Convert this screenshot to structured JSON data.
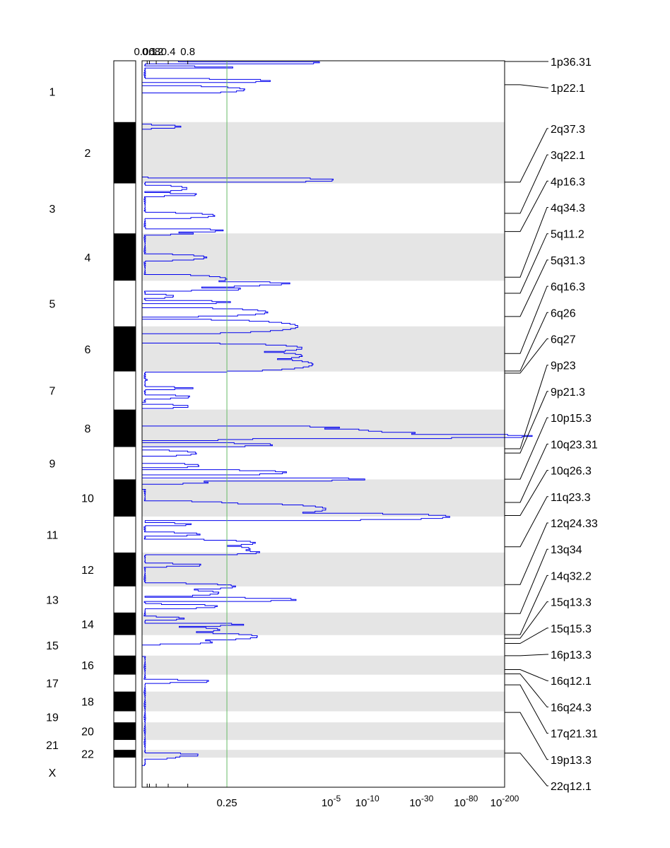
{
  "chart_data": {
    "type": "line",
    "title": "",
    "top_axis": {
      "ticks": [
        "0.068",
        "0.1",
        "0.2",
        "0.4",
        "0.8"
      ],
      "tick_values": [
        0.068,
        0.1,
        0.2,
        0.4,
        0.8
      ]
    },
    "bottom_axis": {
      "ticks": [
        {
          "base": "0.25",
          "exp": "",
          "value": 0.25
        },
        {
          "base": "10",
          "exp": "-5",
          "value": 1e-05
        },
        {
          "base": "10",
          "exp": "-10",
          "value": 1e-10
        },
        {
          "base": "10",
          "exp": "-30",
          "value": 1e-30
        },
        {
          "base": "10",
          "exp": "-80",
          "value": 1e-80
        },
        {
          "base": "10",
          "exp": "-200",
          "value": 1e-200
        }
      ]
    },
    "threshold_qvalue": 0.25,
    "threshold_color": "#66bb66",
    "series_color": "#0000ee",
    "chromosomes": [
      {
        "label": "1",
        "fraction": 0.0845
      },
      {
        "label": "2",
        "fraction": 0.0845
      },
      {
        "label": "3",
        "fraction": 0.0689
      },
      {
        "label": "4",
        "fraction": 0.0652
      },
      {
        "label": "5",
        "fraction": 0.0629
      },
      {
        "label": "6",
        "fraction": 0.0622
      },
      {
        "label": "7",
        "fraction": 0.0525
      },
      {
        "label": "8",
        "fraction": 0.0515
      },
      {
        "label": "9",
        "fraction": 0.0447
      },
      {
        "label": "10",
        "fraction": 0.0512
      },
      {
        "label": "11",
        "fraction": 0.0496
      },
      {
        "label": "12",
        "fraction": 0.0467
      },
      {
        "label": "13",
        "fraction": 0.036
      },
      {
        "label": "14",
        "fraction": 0.0311
      },
      {
        "label": "15",
        "fraction": 0.0282
      },
      {
        "label": "16",
        "fraction": 0.0263
      },
      {
        "label": "17",
        "fraction": 0.0233
      },
      {
        "label": "18",
        "fraction": 0.0272
      },
      {
        "label": "19",
        "fraction": 0.0152
      },
      {
        "label": "20",
        "fraction": 0.0243
      },
      {
        "label": "21",
        "fraction": 0.0136
      },
      {
        "label": "22",
        "fraction": 0.0107
      },
      {
        "label": "X",
        "fraction": 0.0408
      }
    ],
    "peaks": [
      [
        0.0,
        0.7,
        0.004,
        11
      ],
      [
        0.007,
        0.6,
        0.01,
        2.5
      ],
      [
        0.024,
        0.4,
        0.03,
        4.4
      ],
      [
        0.034,
        0.8,
        0.044,
        2.8
      ],
      [
        0.087,
        0.03,
        0.093,
        0.7
      ],
      [
        0.16,
        0.08,
        0.167,
        11
      ],
      [
        0.17,
        0.02,
        0.18,
        0.8
      ],
      [
        0.181,
        0.02,
        0.186,
        1.1
      ],
      [
        0.208,
        0.05,
        0.217,
        1.8
      ],
      [
        0.23,
        0.05,
        0.236,
        2.0
      ],
      [
        0.235,
        0.02,
        0.239,
        1.0
      ],
      [
        0.265,
        0.04,
        0.275,
        1.3
      ],
      [
        0.293,
        0.05,
        0.307,
        2.1
      ],
      [
        0.303,
        0.15,
        0.309,
        6.2
      ],
      [
        0.305,
        0.1,
        0.311,
        4.0
      ],
      [
        0.311,
        0.15,
        0.316,
        3.0
      ],
      [
        0.32,
        0.01,
        0.327,
        0.6
      ],
      [
        0.329,
        0.02,
        0.334,
        2.4
      ],
      [
        0.339,
        0.05,
        0.352,
        4.3
      ],
      [
        0.355,
        0.1,
        0.375,
        6.5
      ],
      [
        0.37,
        0.15,
        0.375,
        3.0
      ],
      [
        0.388,
        0.1,
        0.402,
        7.0
      ],
      [
        0.398,
        0.15,
        0.413,
        7.2
      ],
      [
        0.407,
        0.25,
        0.428,
        8.8
      ],
      [
        0.437,
        0.02,
        0.439,
        0.1
      ],
      [
        0.448,
        0.01,
        0.452,
        1.0
      ],
      [
        0.459,
        0.02,
        0.465,
        0.9
      ],
      [
        0.472,
        0.05,
        0.478,
        0.85
      ],
      [
        0.502,
        0.8,
        0.507,
        12
      ],
      [
        0.505,
        0.4,
        0.512,
        18
      ],
      [
        0.509,
        0.2,
        0.515,
        35
      ],
      [
        0.513,
        0.4,
        0.519,
        160
      ],
      [
        0.517,
        0.2,
        0.522,
        3.5
      ],
      [
        0.525,
        0.05,
        0.531,
        5.0
      ],
      [
        0.535,
        0.05,
        0.544,
        1.2
      ],
      [
        0.553,
        0.05,
        0.56,
        1.2
      ],
      [
        0.562,
        0.05,
        0.57,
        5.7
      ],
      [
        0.573,
        0.1,
        0.578,
        17
      ],
      [
        0.577,
        0.05,
        0.582,
        1.4
      ],
      [
        0.59,
        0.01,
        0.597,
        0.02
      ],
      [
        0.605,
        0.05,
        0.615,
        2.5
      ],
      [
        0.608,
        0.5,
        0.625,
        10
      ],
      [
        0.622,
        0.8,
        0.632,
        55
      ],
      [
        0.635,
        0.05,
        0.64,
        1.0
      ],
      [
        0.648,
        0.08,
        0.654,
        1.3
      ],
      [
        0.658,
        0.4,
        0.668,
        3.6
      ],
      [
        0.665,
        0.2,
        0.677,
        3.2
      ],
      [
        0.672,
        0.3,
        0.68,
        3.7
      ],
      [
        0.691,
        0.02,
        0.696,
        1.2
      ],
      [
        0.718,
        0.08,
        0.728,
        2.4
      ],
      [
        0.727,
        0.1,
        0.737,
        1.8
      ],
      [
        0.738,
        0.05,
        0.744,
        7.0
      ],
      [
        0.747,
        0.05,
        0.754,
        1.9
      ],
      [
        0.764,
        0.02,
        0.77,
        0.8
      ],
      [
        0.773,
        0.1,
        0.778,
        2.9
      ],
      [
        0.778,
        0.1,
        0.787,
        1.8
      ],
      [
        0.786,
        0.08,
        0.798,
        3.5
      ],
      [
        0.796,
        0.05,
        0.803,
        1.5
      ],
      [
        0.851,
        0.02,
        0.856,
        1.6
      ],
      [
        0.903,
        0.01,
        0.905,
        0.05
      ],
      [
        0.952,
        0.05,
        0.958,
        1.2
      ],
      [
        0.956,
        0.02,
        0.961,
        0.6
      ]
    ],
    "cytobands": [
      {
        "label": "1p36.31",
        "pos": 0.001
      },
      {
        "label": "1p22.1",
        "pos": 0.033
      },
      {
        "label": "2q37.3",
        "pos": 0.167
      },
      {
        "label": "3q22.1",
        "pos": 0.21
      },
      {
        "label": "4p16.3",
        "pos": 0.235
      },
      {
        "label": "4q34.3",
        "pos": 0.298
      },
      {
        "label": "5q11.2",
        "pos": 0.32
      },
      {
        "label": "5q31.3",
        "pos": 0.352
      },
      {
        "label": "6q16.3",
        "pos": 0.403
      },
      {
        "label": "6q26",
        "pos": 0.427
      },
      {
        "label": "6q27",
        "pos": 0.43
      },
      {
        "label": "9p23",
        "pos": 0.534
      },
      {
        "label": "9p21.3",
        "pos": 0.54
      },
      {
        "label": "10p15.3",
        "pos": 0.576
      },
      {
        "label": "10q23.31",
        "pos": 0.608
      },
      {
        "label": "10q26.3",
        "pos": 0.626
      },
      {
        "label": "11q23.3",
        "pos": 0.669
      },
      {
        "label": "12q24.33",
        "pos": 0.721
      },
      {
        "label": "13q34",
        "pos": 0.761
      },
      {
        "label": "14q32.2",
        "pos": 0.79
      },
      {
        "label": "15q13.3",
        "pos": 0.795
      },
      {
        "label": "15q15.3",
        "pos": 0.802
      },
      {
        "label": "16p13.3",
        "pos": 0.819
      },
      {
        "label": "16q12.1",
        "pos": 0.838
      },
      {
        "label": "16q24.3",
        "pos": 0.844
      },
      {
        "label": "17q21.31",
        "pos": 0.859
      },
      {
        "label": "19p13.3",
        "pos": 0.897
      },
      {
        "label": "22q12.1",
        "pos": 0.953
      }
    ]
  }
}
